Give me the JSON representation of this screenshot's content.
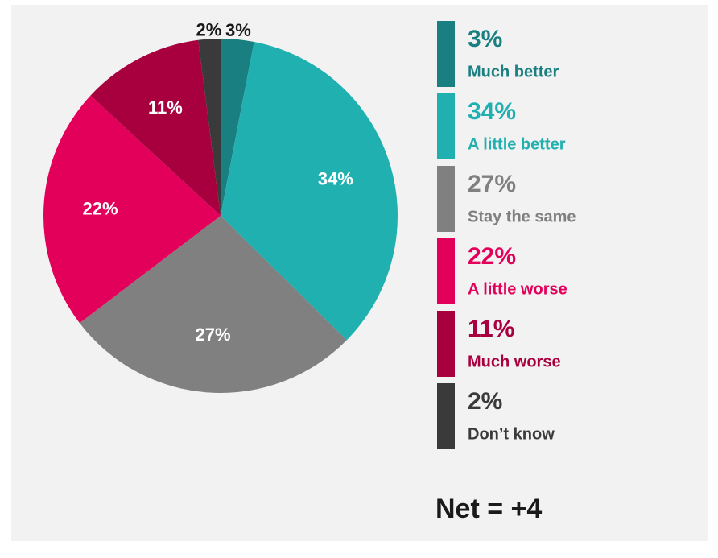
{
  "chart_data": {
    "type": "pie",
    "categories": [
      "Much better",
      "A little better",
      "Stay the same",
      "A little worse",
      "Much worse",
      "Don’t know"
    ],
    "values": [
      3,
      34,
      27,
      22,
      11,
      2
    ],
    "value_labels": [
      "3%",
      "34%",
      "27%",
      "22%",
      "11%",
      "2%"
    ],
    "colors": [
      "#1a7f80",
      "#20b0b0",
      "#808080",
      "#e3005a",
      "#a8003f",
      "#3a3a3a"
    ],
    "annotation": "Net = +4"
  }
}
